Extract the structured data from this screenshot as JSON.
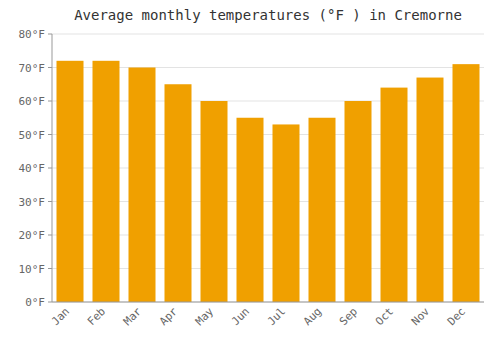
{
  "chart_data": {
    "type": "bar",
    "title": "Average monthly temperatures (°F ) in Cremorne",
    "categories": [
      "Jan",
      "Feb",
      "Mar",
      "Apr",
      "May",
      "Jun",
      "Jul",
      "Aug",
      "Sep",
      "Oct",
      "Nov",
      "Dec"
    ],
    "values": [
      72,
      72,
      70,
      65,
      60,
      55,
      53,
      55,
      60,
      64,
      67,
      71
    ],
    "color": "#F0A000",
    "ylim": [
      0,
      80
    ],
    "yticks": [
      {
        "value": 0,
        "label": "0°F"
      },
      {
        "value": 10,
        "label": "10°F"
      },
      {
        "value": 20,
        "label": "20°F"
      },
      {
        "value": 30,
        "label": "30°F"
      },
      {
        "value": 40,
        "label": "40°F"
      },
      {
        "value": 50,
        "label": "50°F"
      },
      {
        "value": 60,
        "label": "60°F"
      },
      {
        "value": 70,
        "label": "70°F"
      },
      {
        "value": 80,
        "label": "80°F"
      }
    ],
    "grid": true
  }
}
